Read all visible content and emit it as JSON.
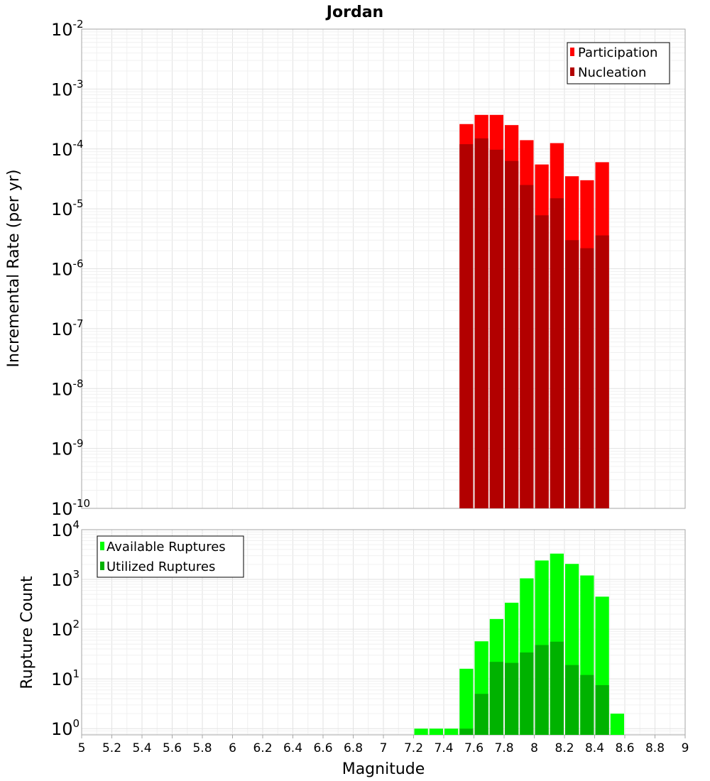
{
  "chart_data": [
    {
      "type": "bar",
      "title": "Jordan",
      "ylabel": "Incremental Rate (per yr)",
      "xlabel": "",
      "xlim": [
        5,
        9
      ],
      "ylim": [
        1e-10,
        0.01
      ],
      "yscale": "log",
      "grid": true,
      "legend_position": "top-right",
      "x": [
        7.55,
        7.65,
        7.75,
        7.85,
        7.95,
        8.05,
        8.15,
        8.25,
        8.35,
        8.45
      ],
      "bin_width": 0.1,
      "series": [
        {
          "name": "Participation",
          "color": "#ff0000",
          "values": [
            0.00026,
            0.00037,
            0.00037,
            0.00025,
            0.00014,
            5.5e-05,
            0.000125,
            3.5e-05,
            3e-05,
            6e-05
          ]
        },
        {
          "name": "Nucleation",
          "color": "#b20000",
          "values": [
            0.00012,
            0.00015,
            9.7e-05,
            6.3e-05,
            2.5e-05,
            7.8e-06,
            1.5e-05,
            3e-06,
            2.2e-06,
            3.6e-06
          ]
        }
      ],
      "y_ticks": [
        "10^-2",
        "10^-3",
        "10^-4",
        "10^-5",
        "10^-6",
        "10^-7",
        "10^-8",
        "10^-9",
        "10^-10"
      ]
    },
    {
      "type": "bar",
      "title": "",
      "ylabel": "Rupture Count",
      "xlabel": "Magnitude",
      "xlim": [
        5,
        9
      ],
      "ylim": [
        0.75,
        10000
      ],
      "yscale": "log",
      "grid": true,
      "legend_position": "top-left",
      "x": [
        7.25,
        7.35,
        7.45,
        7.55,
        7.65,
        7.75,
        7.85,
        7.95,
        8.05,
        8.15,
        8.25,
        8.35,
        8.45,
        8.55
      ],
      "bin_width": 0.1,
      "series": [
        {
          "name": "Available Ruptures",
          "color": "#00ff00",
          "values": [
            1,
            1,
            1,
            16,
            57,
            160,
            340,
            1050,
            2400,
            3300,
            2050,
            1200,
            450,
            2
          ]
        },
        {
          "name": "Utilized Ruptures",
          "color": "#00b200",
          "values": [
            0,
            0,
            0,
            1,
            5,
            22,
            21,
            34,
            48,
            56,
            19,
            12,
            7.5,
            0
          ]
        }
      ],
      "y_ticks": [
        "10^4",
        "10^3",
        "10^2",
        "10^1",
        "10^0"
      ]
    }
  ],
  "x_tick_labels": [
    "5",
    "5.2",
    "5.4",
    "5.6",
    "5.8",
    "6",
    "6.2",
    "6.4",
    "6.6",
    "6.8",
    "7",
    "7.2",
    "7.4",
    "7.6",
    "7.8",
    "8",
    "8.2",
    "8.4",
    "8.6",
    "8.8",
    "9"
  ]
}
